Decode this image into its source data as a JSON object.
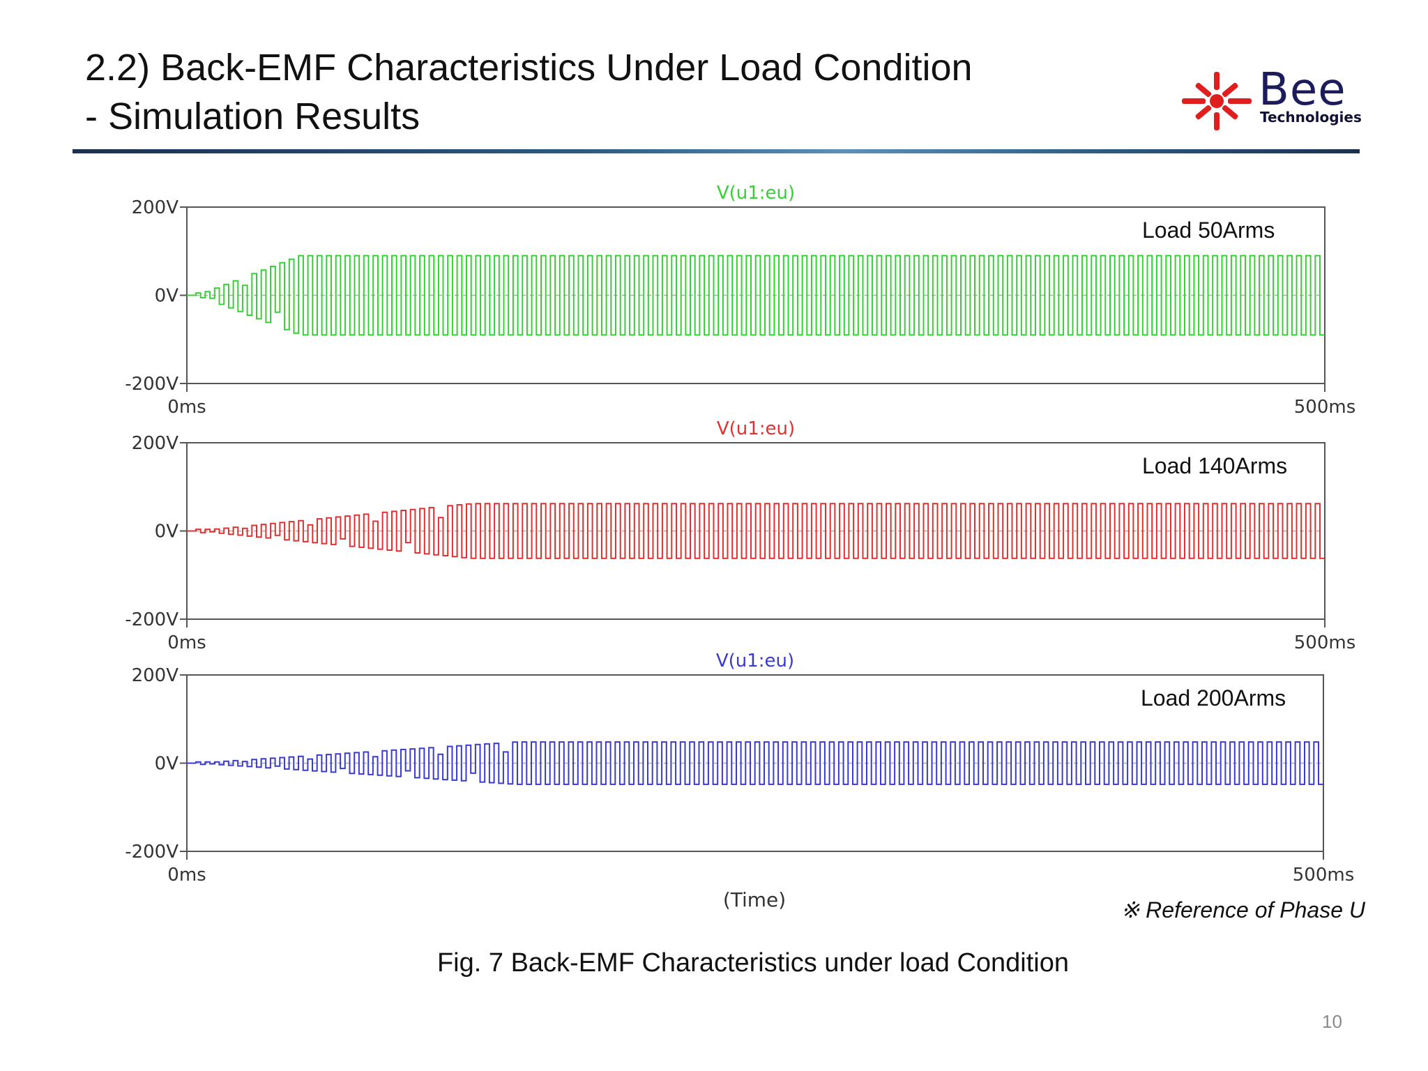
{
  "slide": {
    "title_line1": "2.2) Back-EMF Characteristics Under Load Condition",
    "title_line2": "- Simulation Results",
    "logo_word": "Bee",
    "logo_sub": "Technologies",
    "caption": "Fig. 7 Back-EMF Characteristics under load Condition",
    "page_number": "10"
  },
  "chart_data": [
    {
      "type": "line",
      "title": "V(u1:eu)",
      "annotation": "Load 50Arms",
      "series": [
        {
          "name": "V(u1:eu)",
          "color": "#35d035"
        }
      ],
      "x_range_ms": [
        0,
        500
      ],
      "ylim": [
        -200,
        200
      ],
      "xticks": [
        "0ms",
        "500ms"
      ],
      "yticks": [
        "200V",
        "0V",
        "-200V"
      ],
      "amplitude_v": 90,
      "cycles": 122,
      "ramp_ms": 45,
      "waveform": "square",
      "grid": "dashed zero line"
    },
    {
      "type": "line",
      "title": "V(u1:eu)",
      "annotation": "Load 140Arms",
      "series": [
        {
          "name": "V(u1:eu)",
          "color": "#e03030"
        }
      ],
      "x_range_ms": [
        0,
        500
      ],
      "ylim": [
        -200,
        200
      ],
      "xticks": [
        "0ms",
        "500ms"
      ],
      "yticks": [
        "200V",
        "0V",
        "-200V"
      ],
      "amplitude_v": 62,
      "cycles": 122,
      "ramp_ms": 120,
      "waveform": "square",
      "grid": "dashed zero line"
    },
    {
      "type": "line",
      "title": "V(u1:eu)",
      "annotation": "Load 200Arms",
      "series": [
        {
          "name": "V(u1:eu)",
          "color": "#3a3acc"
        }
      ],
      "x_range_ms": [
        0,
        500
      ],
      "ylim": [
        -200,
        200
      ],
      "xticks": [
        "0ms",
        "500ms"
      ],
      "yticks": [
        "200V",
        "0V",
        "-200V"
      ],
      "amplitude_v": 48,
      "cycles": 122,
      "ramp_ms": 140,
      "waveform": "square",
      "grid": "dashed zero line"
    }
  ],
  "shared": {
    "xlabel": "(Time)",
    "note": "※ Reference of Phase U"
  }
}
